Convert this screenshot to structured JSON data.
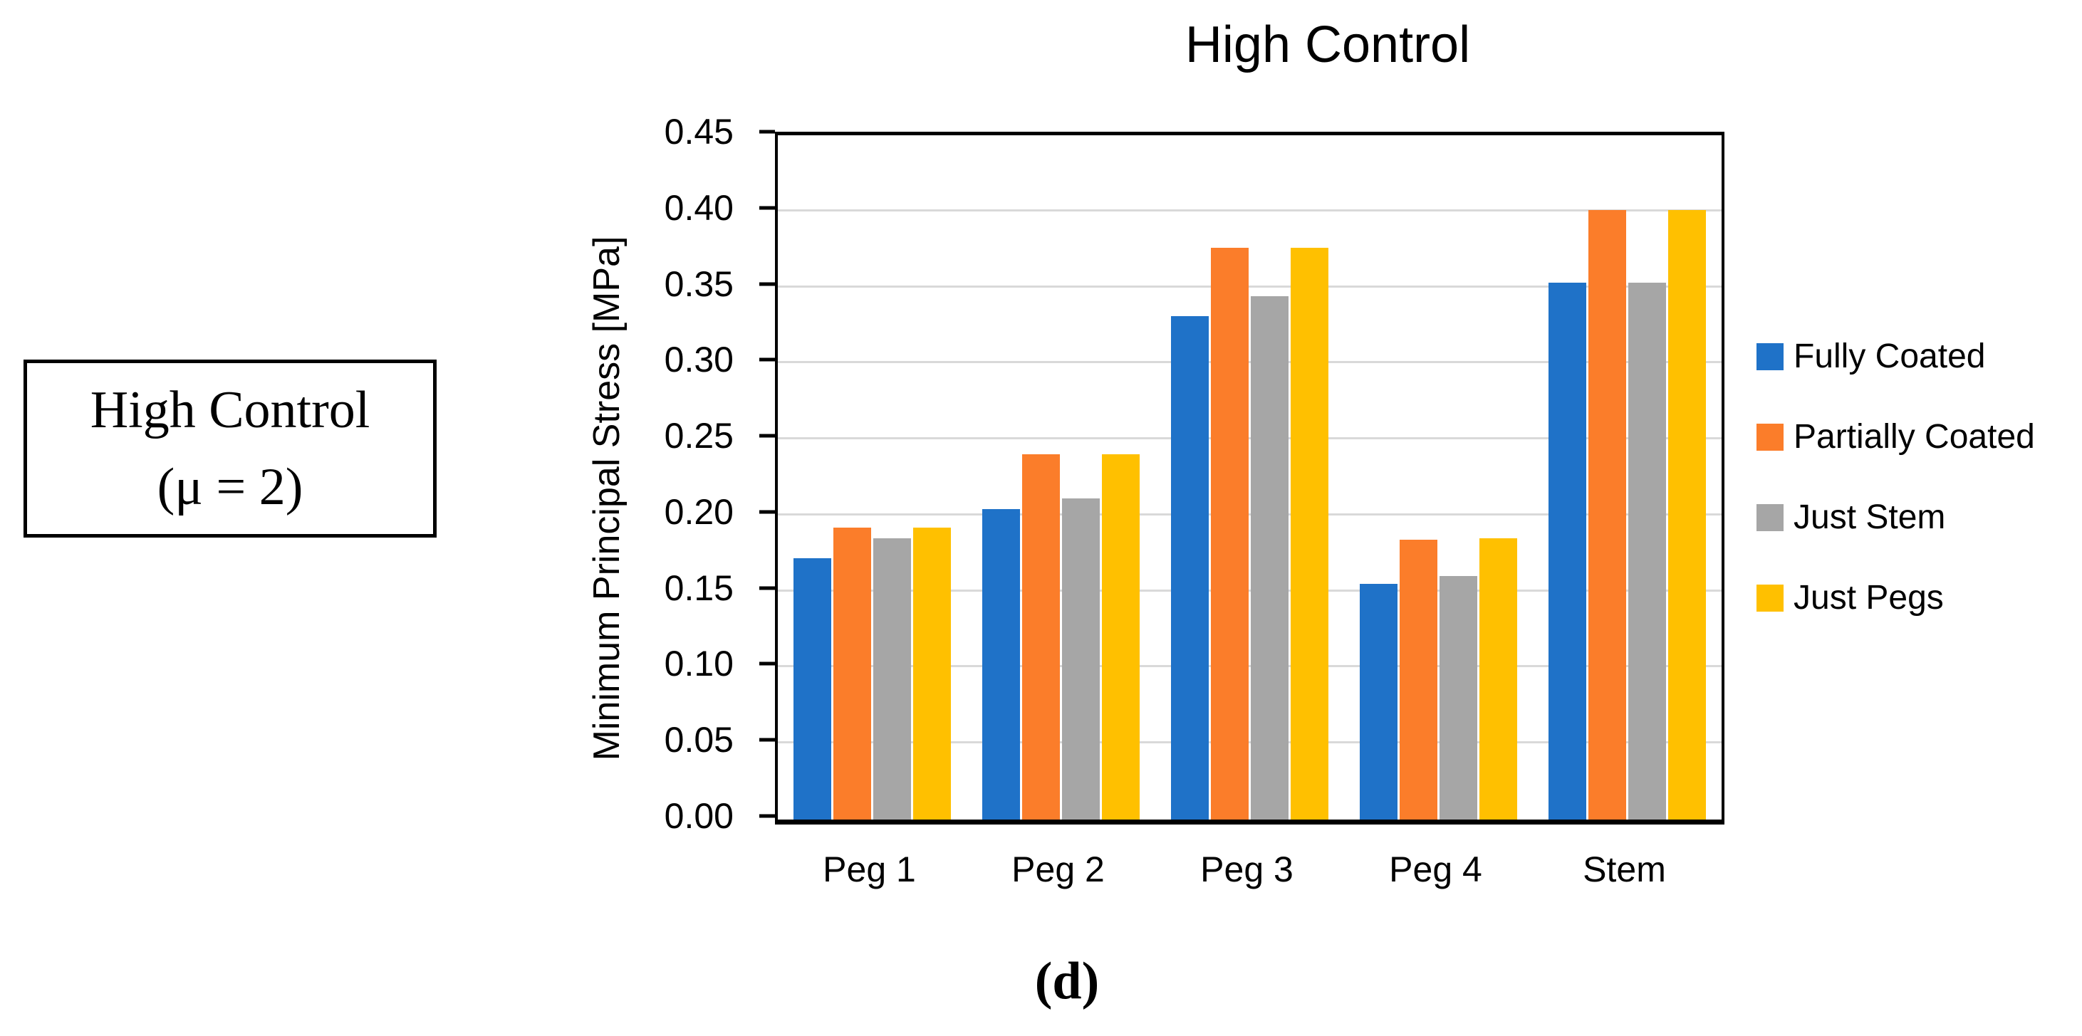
{
  "side_label": {
    "line1": "High Control",
    "line2": "(μ = 2)"
  },
  "caption": "(d)",
  "colors": {
    "axis": "#000000",
    "gridline": "#d9d9d9",
    "text": "#000000",
    "background": "#ffffff"
  },
  "chart_data": {
    "type": "bar",
    "title": "High Control",
    "xlabel": "",
    "ylabel": "Minimum Principal Stress [MPa]",
    "ylim": [
      0,
      0.45
    ],
    "ytick_step": 0.05,
    "grid": true,
    "legend_position": "right",
    "categories": [
      "Peg 1",
      "Peg 2",
      "Peg 3",
      "Peg 4",
      "Stem"
    ],
    "series": [
      {
        "name": "Fully Coated",
        "color": "#1f72c8",
        "values": [
          0.172,
          0.204,
          0.331,
          0.155,
          0.353
        ]
      },
      {
        "name": "Partially Coated",
        "color": "#fb7d2a",
        "values": [
          0.192,
          0.24,
          0.376,
          0.184,
          0.401
        ]
      },
      {
        "name": "Just Stem",
        "color": "#a6a6a6",
        "values": [
          0.185,
          0.211,
          0.344,
          0.16,
          0.353
        ]
      },
      {
        "name": "Just Pegs",
        "color": "#ffc000",
        "values": [
          0.192,
          0.24,
          0.376,
          0.185,
          0.401
        ]
      }
    ]
  }
}
